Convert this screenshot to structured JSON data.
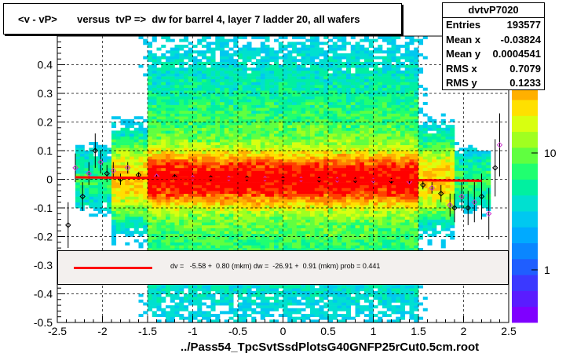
{
  "title": "<v - vP>       versus  tvP =>  dw for barrel 4, layer 7 ladder 20, all wafers",
  "stats": {
    "name": "dvtvP7020",
    "rows": [
      {
        "label": "Entries",
        "value": "193577"
      },
      {
        "label": "Mean x",
        "value": "-0.03824"
      },
      {
        "label": "Mean y",
        "value": "0.0004541"
      },
      {
        "label": "RMS x",
        "value": "0.7079"
      },
      {
        "label": "RMS y",
        "value": "0.1233"
      }
    ]
  },
  "fit_legend": "dv =   -5.58 +  0.80 (mkm) dw =  -26.91 +  0.91 (mkm) prob = 0.441",
  "xlabel": "../Pass54_TpcSvtSsdPlotsG40GNFP25rCut0.5cm.root",
  "colors": {
    "fit": "#ff0000",
    "grid": "#000000",
    "legend_bg": "#f3f0ee"
  },
  "chart_data": {
    "type": "heatmap",
    "xlim": [
      -2.5,
      2.5
    ],
    "ylim": [
      -0.5,
      0.5
    ],
    "x_ticks": [
      "-2.5",
      "-2",
      "-1.5",
      "-1",
      "-0.5",
      "0",
      "0.5",
      "1",
      "1.5",
      "2",
      "2.5"
    ],
    "x_tick_values": [
      -2.5,
      -2,
      -1.5,
      -1,
      -0.5,
      0,
      0.5,
      1,
      1.5,
      2,
      2.5
    ],
    "y_ticks": [
      "-0.5",
      "-0.4",
      "-0.3",
      "-0.2",
      "-0.1",
      "0",
      "0.1",
      "0.2",
      "0.3",
      "0.4"
    ],
    "y_tick_values": [
      -0.5,
      -0.4,
      -0.3,
      -0.2,
      -0.1,
      0,
      0.1,
      0.2,
      0.3,
      0.4
    ],
    "z_scale": "log",
    "z_ticks": [
      "1",
      "10"
    ],
    "z_tick_values": [
      1,
      10
    ],
    "grid": true,
    "fit_line": {
      "x": [
        -2.3,
        2.2
      ],
      "y": [
        0.007,
        -0.005
      ]
    },
    "profile_points": [
      {
        "x": -2.38,
        "y": -0.16,
        "err": 0.08
      },
      {
        "x": -2.3,
        "y": 0.04,
        "err": 0.05
      },
      {
        "x": -2.22,
        "y": -0.06,
        "err": 0.05
      },
      {
        "x": -2.15,
        "y": 0.02,
        "err": 0.04
      },
      {
        "x": -2.08,
        "y": 0.1,
        "err": 0.06
      },
      {
        "x": -2.02,
        "y": 0.06,
        "err": 0.04
      },
      {
        "x": -1.95,
        "y": 0.02,
        "err": 0.03
      },
      {
        "x": -1.88,
        "y": 0.03,
        "err": 0.03
      },
      {
        "x": -1.8,
        "y": 0.0,
        "err": 0.02
      },
      {
        "x": -1.72,
        "y": 0.04,
        "err": 0.02
      },
      {
        "x": -1.6,
        "y": 0.015,
        "err": 0.01
      },
      {
        "x": -1.4,
        "y": 0.01,
        "err": 0.008
      },
      {
        "x": -1.2,
        "y": 0.008,
        "err": 0.006
      },
      {
        "x": -1.0,
        "y": 0.005,
        "err": 0.005
      },
      {
        "x": -0.8,
        "y": 0.004,
        "err": 0.004
      },
      {
        "x": -0.6,
        "y": 0.003,
        "err": 0.004
      },
      {
        "x": -0.4,
        "y": 0.003,
        "err": 0.003
      },
      {
        "x": -0.2,
        "y": 0.002,
        "err": 0.003
      },
      {
        "x": 0.0,
        "y": 0.001,
        "err": 0.003
      },
      {
        "x": 0.2,
        "y": 0.0,
        "err": 0.003
      },
      {
        "x": 0.4,
        "y": -0.001,
        "err": 0.003
      },
      {
        "x": 0.6,
        "y": -0.002,
        "err": 0.004
      },
      {
        "x": 0.8,
        "y": -0.003,
        "err": 0.004
      },
      {
        "x": 1.0,
        "y": -0.004,
        "err": 0.005
      },
      {
        "x": 1.2,
        "y": -0.005,
        "err": 0.006
      },
      {
        "x": 1.4,
        "y": -0.008,
        "err": 0.008
      },
      {
        "x": 1.55,
        "y": -0.02,
        "err": 0.015
      },
      {
        "x": 1.65,
        "y": -0.03,
        "err": 0.02
      },
      {
        "x": 1.75,
        "y": -0.05,
        "err": 0.03
      },
      {
        "x": 1.85,
        "y": -0.09,
        "err": 0.04
      },
      {
        "x": 1.9,
        "y": -0.1,
        "err": 0.05
      },
      {
        "x": 1.98,
        "y": -0.06,
        "err": 0.05
      },
      {
        "x": 2.05,
        "y": -0.1,
        "err": 0.06
      },
      {
        "x": 2.12,
        "y": -0.08,
        "err": 0.07
      },
      {
        "x": 2.2,
        "y": -0.06,
        "err": 0.08
      },
      {
        "x": 2.28,
        "y": -0.12,
        "err": 0.09
      },
      {
        "x": 2.35,
        "y": 0.04,
        "err": 0.1
      },
      {
        "x": 2.4,
        "y": 0.12,
        "err": 0.11
      }
    ]
  }
}
